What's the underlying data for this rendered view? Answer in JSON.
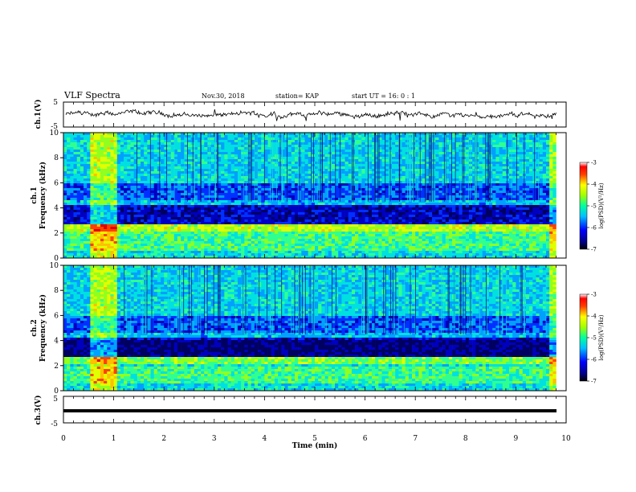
{
  "header": {
    "title": "VLF Spectra",
    "date": "Nov.30, 2018",
    "station": "station= KAP",
    "start": "start  UT =   16: 0  : 1"
  },
  "chart_data": [
    {
      "type": "line",
      "panel": "ch1-waveform",
      "ylabel": "ch.1(V)",
      "yticks": [
        "5",
        "-5"
      ],
      "ylim": [
        -5,
        5
      ],
      "xlim": [
        0,
        10
      ],
      "description_values": "continuous noisy trace near ~0 V"
    },
    {
      "type": "heatmap",
      "panel": "ch1-spectrogram",
      "ylabel": "ch.1\nFrequency  (kHz)",
      "ylabel_lines": [
        "ch.1",
        "Frequency  (kHz)"
      ],
      "yticks": [
        "0",
        "2",
        "4",
        "6",
        "8",
        "10"
      ],
      "ylim": [
        0,
        10
      ],
      "xlim": [
        0,
        10
      ],
      "colorbar": {
        "label": "log(PSD)(V²/Hz)",
        "ticks": [
          "-3",
          "-4",
          "-5",
          "-6",
          "-7"
        ],
        "range": [
          -7,
          -3
        ]
      }
    },
    {
      "type": "heatmap",
      "panel": "ch2-spectrogram",
      "ylabel_lines": [
        "ch.2",
        "Frequency  (kHz)"
      ],
      "yticks": [
        "0",
        "2",
        "4",
        "6",
        "8",
        "10"
      ],
      "ylim": [
        0,
        10
      ],
      "xlim": [
        0,
        10
      ],
      "colorbar": {
        "label": "log(PSD)(V²/Hz)",
        "ticks": [
          "-3",
          "-4",
          "-5",
          "-6",
          "-7"
        ],
        "range": [
          -7,
          -3
        ]
      }
    },
    {
      "type": "line",
      "panel": "ch3-waveform",
      "ylabel": "ch.3(V)",
      "yticks": [
        "5",
        "-5"
      ],
      "ylim": [
        -5,
        5
      ],
      "xlim": [
        0,
        10
      ],
      "constant_value": 0
    }
  ],
  "xaxis": {
    "label": "Time  (min)",
    "ticks": [
      "0",
      "1",
      "2",
      "3",
      "4",
      "5",
      "6",
      "7",
      "8",
      "9",
      "10"
    ]
  },
  "colors": {
    "colormap": [
      "#000080",
      "#0000ff",
      "#00a0ff",
      "#00ffff",
      "#40ff80",
      "#c0ff00",
      "#ffff00",
      "#ff8000",
      "#ff0000",
      "#ffffff"
    ]
  }
}
